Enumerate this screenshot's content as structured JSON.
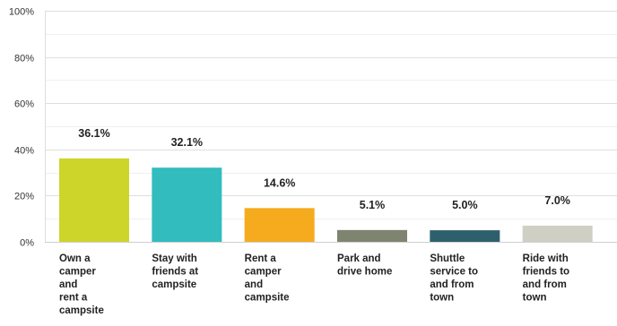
{
  "chart_data": {
    "type": "bar",
    "categories": [
      [
        "Own a",
        "camper",
        "and",
        "rent a",
        "campsite"
      ],
      [
        "Stay with",
        "friends at",
        "campsite"
      ],
      [
        "Rent a",
        "camper",
        "and",
        "campsite"
      ],
      [
        "Park and",
        "drive home"
      ],
      [
        "Shuttle",
        "service to",
        "and from",
        "town"
      ],
      [
        "Ride with",
        "friends to",
        "and from",
        "town"
      ]
    ],
    "values": [
      36.1,
      32.1,
      14.6,
      5.1,
      5.0,
      7.0
    ],
    "data_labels": [
      "36.1%",
      "32.1%",
      "14.6%",
      "5.1%",
      "5.0%",
      "7.0%"
    ],
    "colors": [
      "#cdd52b",
      "#33bcbe",
      "#f6ab1e",
      "#7f8470",
      "#2e5f6d",
      "#cfcfc4"
    ],
    "yticks": [
      0,
      20,
      40,
      60,
      80,
      100
    ],
    "ytick_labels": [
      "0%",
      "20%",
      "40%",
      "60%",
      "80%",
      "100%"
    ],
    "ylim": [
      0,
      100
    ],
    "grid": true,
    "title": "",
    "xlabel": "",
    "ylabel": ""
  }
}
